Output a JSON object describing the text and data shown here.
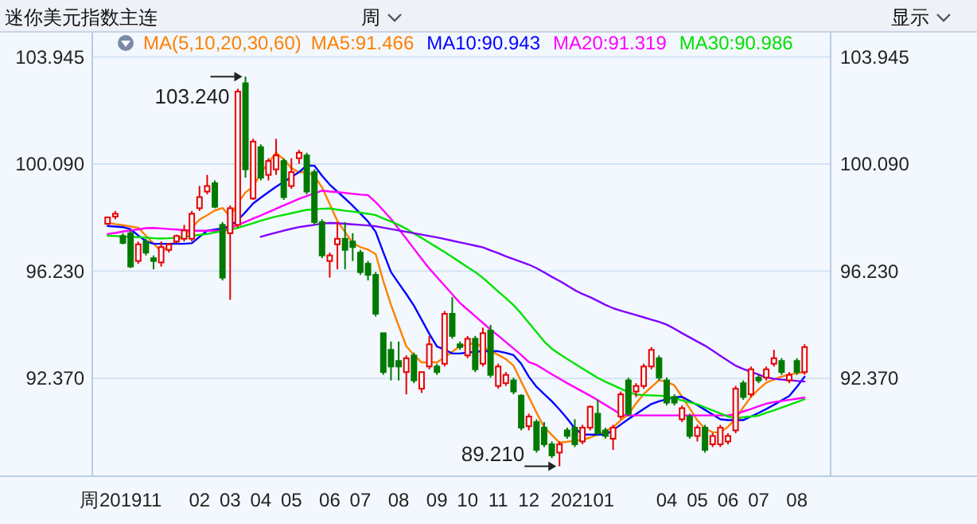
{
  "chart_data": {
    "type": "candlestick",
    "title": "迷你美元指数主连",
    "xlabel": "周",
    "legend_title": "MA(5,10,20,30,60)",
    "legend": "top",
    "grid": "y",
    "categories": [
      null,
      null,
      null,
      "201911",
      null,
      null,
      null,
      null,
      null,
      null,
      null,
      null,
      "02",
      null,
      null,
      null,
      "03",
      null,
      null,
      null,
      "04",
      null,
      null,
      null,
      "05",
      null,
      null,
      null,
      null,
      "06",
      null,
      null,
      null,
      "07",
      null,
      null,
      null,
      null,
      "08",
      null,
      null,
      null,
      null,
      "09",
      null,
      null,
      null,
      "10",
      null,
      null,
      null,
      "11",
      null,
      null,
      null,
      "12",
      null,
      null,
      null,
      null,
      null,
      null,
      "202101",
      null,
      null,
      null,
      null,
      null,
      null,
      null,
      null,
      null,
      null,
      "04",
      null,
      null,
      null,
      "05",
      null,
      null,
      null,
      "06",
      null,
      null,
      null,
      "07",
      null,
      null,
      null,
      null,
      "08",
      null
    ],
    "ohlc": [
      [
        97.94,
        98.2,
        97.9,
        98.17
      ],
      [
        98.2,
        98.4,
        98.1,
        98.3
      ],
      [
        97.5,
        97.6,
        97.2,
        97.25
      ],
      [
        97.6,
        97.7,
        96.35,
        96.4
      ],
      [
        96.6,
        97.3,
        96.5,
        97.2
      ],
      [
        97.3,
        97.4,
        96.8,
        96.9
      ],
      [
        96.7,
        96.8,
        96.3,
        96.6
      ],
      [
        96.55,
        97.3,
        96.4,
        97.1
      ],
      [
        97.0,
        97.25,
        96.9,
        97.2
      ],
      [
        97.3,
        97.55,
        97.25,
        97.5
      ],
      [
        97.4,
        97.9,
        97.3,
        97.7
      ],
      [
        97.4,
        98.4,
        97.3,
        98.3
      ],
      [
        98.5,
        99.3,
        98.4,
        98.9
      ],
      [
        99.1,
        99.7,
        99.0,
        99.3
      ],
      [
        99.4,
        99.5,
        98.5,
        98.55
      ],
      [
        97.9,
        98.0,
        95.9,
        96.0
      ],
      [
        97.6,
        98.6,
        95.2,
        98.5
      ],
      [
        97.9,
        102.8,
        97.8,
        102.7
      ],
      [
        103.0,
        103.24,
        99.6,
        99.9
      ],
      [
        98.85,
        101.0,
        98.8,
        100.9
      ],
      [
        100.7,
        100.8,
        99.5,
        99.6
      ],
      [
        99.7,
        100.3,
        99.5,
        100.2
      ],
      [
        99.9,
        101.0,
        99.7,
        100.4
      ],
      [
        100.2,
        100.3,
        98.8,
        98.9
      ],
      [
        99.3,
        100.3,
        99.2,
        99.8
      ],
      [
        100.3,
        100.6,
        100.1,
        100.5
      ],
      [
        100.4,
        100.5,
        99.0,
        99.1
      ],
      [
        99.8,
        99.9,
        97.9,
        98.0
      ],
      [
        98.0,
        98.1,
        96.7,
        96.8
      ],
      [
        96.6,
        96.9,
        96.0,
        96.8
      ],
      [
        97.2,
        98.0,
        96.3,
        97.4
      ],
      [
        97.4,
        98.0,
        96.3,
        97.0
      ],
      [
        97.3,
        97.6,
        96.6,
        97.1
      ],
      [
        96.9,
        97.0,
        96.1,
        96.2
      ],
      [
        96.5,
        96.6,
        95.9,
        96.1
      ],
      [
        96.1,
        96.2,
        94.6,
        94.7
      ],
      [
        94.0,
        94.0,
        92.5,
        92.6
      ],
      [
        93.4,
        93.7,
        92.3,
        92.8
      ],
      [
        93.0,
        93.7,
        92.3,
        92.8
      ],
      [
        92.6,
        93.2,
        91.8,
        93.1
      ],
      [
        93.2,
        93.3,
        92.2,
        92.3
      ],
      [
        92.0,
        92.6,
        91.85,
        92.6
      ],
      [
        92.8,
        93.9,
        92.7,
        93.6
      ],
      [
        92.8,
        92.9,
        92.5,
        92.6
      ],
      [
        92.9,
        94.8,
        92.8,
        94.7
      ],
      [
        94.7,
        95.3,
        93.8,
        93.9
      ],
      [
        93.6,
        93.7,
        93.4,
        93.5
      ],
      [
        93.2,
        93.9,
        93.1,
        93.8
      ],
      [
        93.8,
        93.9,
        92.6,
        92.7
      ],
      [
        92.9,
        94.2,
        92.8,
        94.0
      ],
      [
        94.1,
        94.3,
        92.4,
        92.5
      ],
      [
        92.1,
        92.9,
        92.0,
        92.8
      ],
      [
        92.2,
        92.6,
        92.1,
        92.5
      ],
      [
        92.3,
        92.4,
        91.8,
        91.9
      ],
      [
        91.75,
        91.8,
        90.5,
        90.6
      ],
      [
        90.65,
        91.1,
        90.5,
        91.0
      ],
      [
        90.8,
        90.9,
        89.7,
        89.8
      ],
      [
        90.6,
        90.8,
        89.9,
        90.0
      ],
      [
        90.0,
        90.1,
        89.5,
        89.6
      ],
      [
        89.7,
        90.1,
        89.21,
        90.0
      ],
      [
        90.5,
        90.6,
        90.2,
        90.3
      ],
      [
        90.6,
        90.9,
        89.9,
        90.0
      ],
      [
        90.1,
        90.7,
        90.0,
        90.6
      ],
      [
        90.6,
        91.4,
        90.5,
        91.35
      ],
      [
        91.1,
        91.6,
        90.3,
        90.4
      ],
      [
        90.5,
        90.6,
        90.2,
        90.3
      ],
      [
        90.2,
        90.7,
        89.8,
        90.6
      ],
      [
        91.0,
        91.9,
        90.9,
        91.8
      ],
      [
        92.3,
        92.4,
        91.0,
        91.1
      ],
      [
        91.9,
        92.2,
        91.7,
        92.1
      ],
      [
        92.1,
        92.9,
        92.0,
        92.8
      ],
      [
        92.8,
        93.5,
        92.7,
        93.4
      ],
      [
        93.1,
        93.2,
        92.3,
        92.4
      ],
      [
        92.3,
        92.4,
        91.4,
        91.5
      ],
      [
        91.7,
        91.8,
        91.4,
        91.5
      ],
      [
        90.9,
        91.4,
        90.8,
        91.3
      ],
      [
        91.0,
        91.1,
        90.2,
        90.3
      ],
      [
        90.3,
        90.7,
        90.1,
        90.6
      ],
      [
        90.6,
        90.7,
        89.7,
        89.8
      ],
      [
        90.0,
        90.4,
        89.9,
        90.3
      ],
      [
        90.0,
        90.7,
        89.9,
        90.6
      ],
      [
        90.1,
        90.4,
        90.0,
        90.3
      ],
      [
        90.5,
        92.1,
        90.4,
        92.0
      ],
      [
        92.2,
        92.3,
        91.6,
        91.7
      ],
      [
        91.8,
        92.8,
        91.7,
        92.7
      ],
      [
        92.4,
        92.5,
        92.2,
        92.3
      ],
      [
        92.4,
        92.8,
        92.3,
        92.7
      ],
      [
        92.9,
        93.4,
        92.8,
        93.1
      ],
      [
        93.0,
        93.1,
        92.5,
        92.6
      ],
      [
        92.3,
        92.6,
        92.2,
        92.5
      ],
      [
        93.0,
        93.1,
        92.5,
        92.6
      ],
      [
        92.6,
        93.6,
        92.5,
        93.5
      ]
    ],
    "series": [
      {
        "name": "MA5:91.466",
        "type": "line",
        "color": "#ff8000",
        "values": [
          97.98,
          97.93,
          97.89,
          97.84,
          97.8,
          97.51,
          97.23,
          96.94,
          97.13,
          97.32,
          97.51,
          97.8,
          98.09,
          98.25,
          98.42,
          98.51,
          98.2,
          98.68,
          99.07,
          99.28,
          99.75,
          100.15,
          100.5,
          100.25,
          99.95,
          99.79,
          99.81,
          99.66,
          99.25,
          98.65,
          98.04,
          97.64,
          97.25,
          97.1,
          97.01,
          96.85,
          95.88,
          95.02,
          94.27,
          93.53,
          93.21,
          92.95,
          92.95,
          92.95,
          93.13,
          93.33,
          93.53,
          93.59,
          93.64,
          93.5,
          93.36,
          93.22,
          93.07,
          92.83,
          92.26,
          91.7,
          91.14,
          90.61,
          90.34,
          90.06,
          90.09,
          90.13,
          90.16,
          90.24,
          90.36,
          90.48,
          90.62,
          90.86,
          91.08,
          91.47,
          91.81,
          92.06,
          92.31,
          92.25,
          92.12,
          91.71,
          91.29,
          90.86,
          90.57,
          90.43,
          90.43,
          90.63,
          90.92,
          91.33,
          91.7,
          91.98,
          92.22,
          92.33,
          92.44,
          92.51,
          92.56,
          92.6
        ]
      },
      {
        "name": "MA10:90.943",
        "type": "line",
        "color": "#0000ff",
        "values": [
          97.86,
          97.84,
          97.82,
          97.74,
          97.52,
          97.31,
          97.22,
          97.22,
          97.22,
          97.22,
          97.22,
          97.24,
          97.47,
          97.69,
          97.73,
          97.77,
          97.86,
          98.07,
          98.36,
          98.67,
          98.88,
          99.08,
          99.27,
          99.45,
          99.62,
          99.8,
          100.04,
          100.03,
          99.67,
          99.35,
          99.1,
          98.85,
          98.59,
          98.31,
          98.02,
          97.65,
          96.91,
          96.2,
          95.8,
          95.41,
          94.99,
          94.49,
          93.98,
          93.52,
          93.41,
          93.27,
          93.27,
          93.3,
          93.33,
          93.35,
          93.35,
          93.35,
          93.29,
          93.21,
          92.9,
          92.43,
          92.07,
          91.81,
          91.55,
          91.25,
          90.93,
          90.57,
          90.35,
          90.35,
          90.35,
          90.35,
          90.51,
          90.71,
          90.91,
          91.09,
          91.27,
          91.45,
          91.55,
          91.62,
          91.69,
          91.71,
          91.56,
          91.41,
          91.24,
          91.07,
          90.9,
          90.87,
          90.87,
          90.87,
          91.0,
          91.13,
          91.27,
          91.42,
          91.58,
          91.74,
          92.07,
          92.43
        ]
      },
      {
        "name": "MA20:91.319",
        "type": "line",
        "color": "#ff00ff",
        "values": [
          97.57,
          97.61,
          97.66,
          97.7,
          97.74,
          97.78,
          97.79,
          97.77,
          97.75,
          97.73,
          97.71,
          97.69,
          97.69,
          97.69,
          97.69,
          97.69,
          97.79,
          97.9,
          98.01,
          98.13,
          98.24,
          98.36,
          98.48,
          98.6,
          98.72,
          98.84,
          98.94,
          99.03,
          99.13,
          99.1,
          99.08,
          99.05,
          99.02,
          98.99,
          98.97,
          98.72,
          98.42,
          98.11,
          97.76,
          97.4,
          97.04,
          96.68,
          96.33,
          96.02,
          95.71,
          95.4,
          95.09,
          94.85,
          94.61,
          94.37,
          94.13,
          93.91,
          93.68,
          93.45,
          93.22,
          92.96,
          92.86,
          92.69,
          92.52,
          92.36,
          92.2,
          92.05,
          91.9,
          91.75,
          91.59,
          91.42,
          91.25,
          91.07,
          91.04,
          91.04,
          91.04,
          91.04,
          91.04,
          91.04,
          91.04,
          91.04,
          91.04,
          91.04,
          91.04,
          91.04,
          91.04,
          91.04,
          91.08,
          91.18,
          91.27,
          91.37,
          91.46,
          91.52,
          91.56,
          91.6,
          91.64,
          91.68
        ]
      },
      {
        "name": "MA30:90.986",
        "type": "line",
        "color": "#00e000",
        "values": [
          97.51,
          97.5,
          97.48,
          97.47,
          97.46,
          97.44,
          97.42,
          97.41,
          97.42,
          97.44,
          97.48,
          97.51,
          97.54,
          97.57,
          97.63,
          97.68,
          97.74,
          97.79,
          97.88,
          97.96,
          98.05,
          98.13,
          98.2,
          98.26,
          98.32,
          98.38,
          98.44,
          98.46,
          98.48,
          98.49,
          98.45,
          98.41,
          98.38,
          98.34,
          98.3,
          98.25,
          98.13,
          98.02,
          97.9,
          97.76,
          97.59,
          97.43,
          97.26,
          97.09,
          96.92,
          96.74,
          96.56,
          96.38,
          96.2,
          95.99,
          95.75,
          95.5,
          95.26,
          95.01,
          94.71,
          94.37,
          94.04,
          93.7,
          93.44,
          93.25,
          93.07,
          92.9,
          92.73,
          92.56,
          92.39,
          92.25,
          92.13,
          92.0,
          91.88,
          91.79,
          91.77,
          91.76,
          91.75,
          91.73,
          91.66,
          91.58,
          91.51,
          91.44,
          91.33,
          91.22,
          91.11,
          91.0,
          90.94,
          90.97,
          91.0,
          91.03,
          91.13,
          91.22,
          91.32,
          91.42,
          91.52,
          91.62
        ]
      },
      {
        "type": "line",
        "color": "#8000ff",
        "values": [
          null,
          null,
          null,
          null,
          null,
          null,
          null,
          null,
          null,
          null,
          null,
          null,
          null,
          null,
          null,
          null,
          null,
          null,
          null,
          null,
          97.47,
          97.55,
          97.62,
          97.69,
          97.76,
          97.82,
          97.86,
          97.9,
          97.95,
          97.97,
          97.96,
          97.94,
          97.92,
          97.9,
          97.88,
          97.85,
          97.8,
          97.75,
          97.7,
          97.65,
          97.6,
          97.55,
          97.5,
          97.45,
          97.39,
          97.33,
          97.27,
          97.21,
          97.15,
          97.09,
          96.98,
          96.88,
          96.77,
          96.67,
          96.57,
          96.47,
          96.34,
          96.19,
          96.03,
          95.88,
          95.72,
          95.55,
          95.41,
          95.3,
          95.16,
          95.02,
          94.9,
          94.81,
          94.73,
          94.65,
          94.57,
          94.49,
          94.41,
          94.31,
          94.16,
          94.0,
          93.85,
          93.7,
          93.55,
          93.37,
          93.19,
          93.01,
          92.83,
          92.71,
          92.61,
          92.51,
          92.41,
          92.36,
          92.33,
          92.31,
          92.28,
          92.26
        ]
      }
    ],
    "ylim": [
      88.85,
      104.85
    ],
    "yticks": [
      103.945,
      {
        "value": 100.09,
        "label": "100.090"
      },
      {
        "value": 96.23,
        "label": "96.230"
      },
      {
        "value": 92.37,
        "label": "92.370"
      }
    ],
    "y2lim": [
      88.85,
      104.85
    ],
    "y2ticks": [
      103.945,
      {
        "value": 100.09,
        "label": "100.090"
      },
      {
        "value": 96.23,
        "label": "96.230"
      },
      {
        "value": 92.37,
        "label": "92.370"
      }
    ],
    "annotations": [
      "103.240",
      "89.210",
      "周",
      "显示"
    ]
  }
}
